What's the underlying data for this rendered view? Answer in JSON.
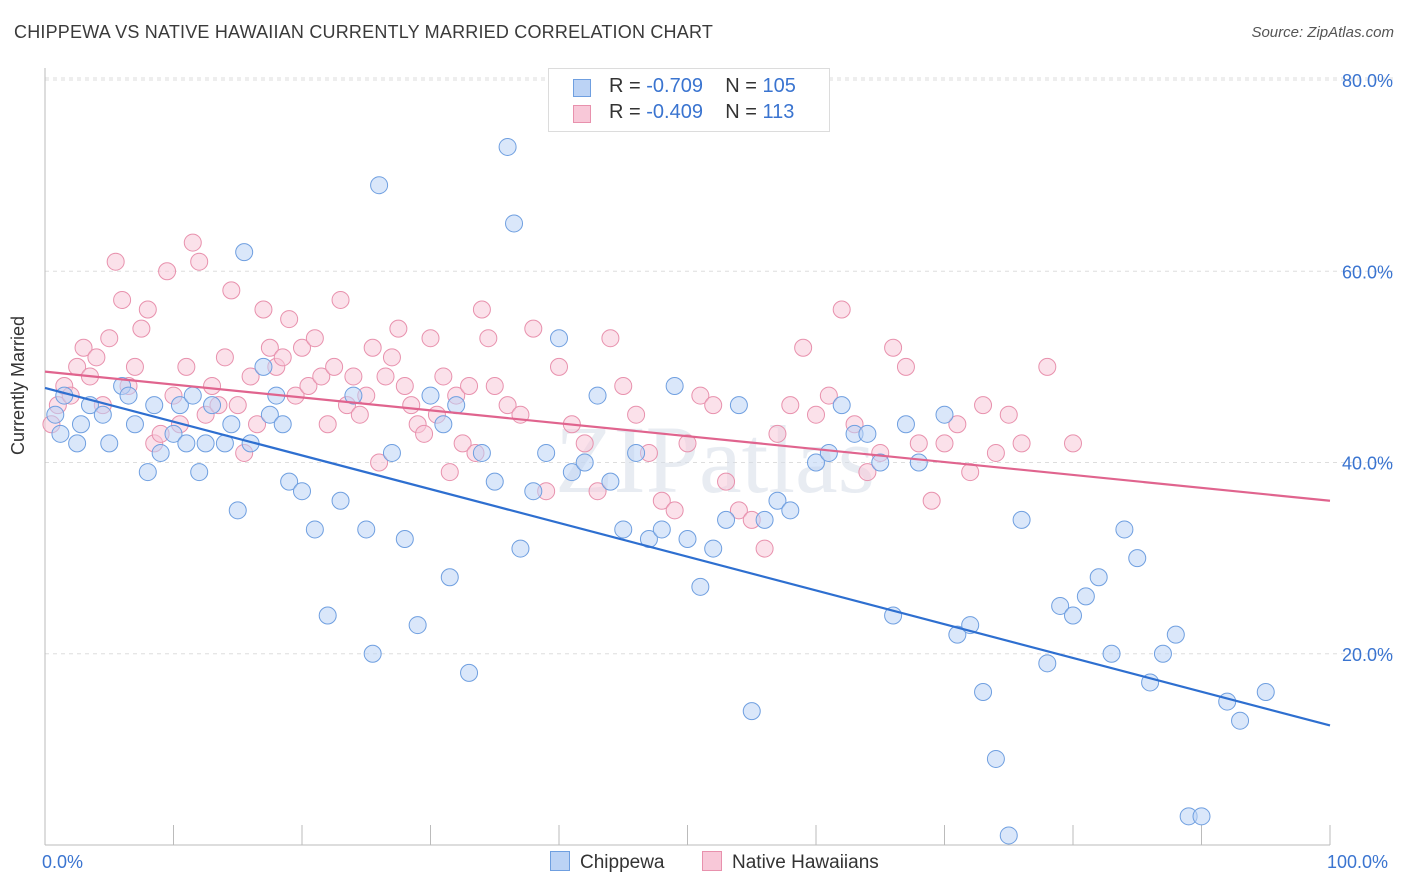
{
  "title": "CHIPPEWA VS NATIVE HAWAIIAN CURRENTLY MARRIED CORRELATION CHART",
  "source": "Source: ZipAtlas.com",
  "watermark": "ZIPatlas",
  "legend": {
    "rows": [
      {
        "r_label": "R =",
        "r_value": "-0.709",
        "n_label": "N =",
        "n_value": "105"
      },
      {
        "r_label": "R =",
        "r_value": "-0.409",
        "n_label": "N =",
        "n_value": "113"
      }
    ]
  },
  "bottom_legend": [
    "Chippewa",
    "Native Hawaiians"
  ],
  "chart_data": {
    "type": "scatter",
    "title": "CHIPPEWA VS NATIVE HAWAIIAN CURRENTLY MARRIED CORRELATION CHART",
    "xlabel": "",
    "ylabel": "Currently Married",
    "xlim": [
      0,
      100
    ],
    "ylim": [
      0,
      80
    ],
    "x_tick_labels": [
      "0.0%",
      "100.0%"
    ],
    "y_tick_values": [
      20,
      40,
      60,
      80
    ],
    "y_tick_labels": [
      "20.0%",
      "40.0%",
      "60.0%",
      "80.0%"
    ],
    "grid": "horizontal dashed",
    "legend_position": "top-center",
    "series": [
      {
        "name": "Chippewa",
        "color": "#6f9fe0",
        "fill": "#bcd3f5",
        "line_color": "#2e6fd0",
        "trend": {
          "x0": 0,
          "y0": 47.8,
          "x1": 100,
          "y1": 12.5
        },
        "points": [
          [
            0.8,
            45
          ],
          [
            1.2,
            43
          ],
          [
            1.5,
            47
          ],
          [
            2.5,
            42
          ],
          [
            2.8,
            44
          ],
          [
            3.5,
            46
          ],
          [
            4.5,
            45
          ],
          [
            5,
            42
          ],
          [
            6,
            48
          ],
          [
            6.5,
            47
          ],
          [
            7,
            44
          ],
          [
            8,
            39
          ],
          [
            8.5,
            46
          ],
          [
            9,
            41
          ],
          [
            10,
            43
          ],
          [
            10.5,
            46
          ],
          [
            11,
            42
          ],
          [
            11.5,
            47
          ],
          [
            12,
            39
          ],
          [
            12.5,
            42
          ],
          [
            13,
            46
          ],
          [
            14,
            42
          ],
          [
            14.5,
            44
          ],
          [
            15,
            35
          ],
          [
            15.5,
            62
          ],
          [
            16,
            42
          ],
          [
            17,
            50
          ],
          [
            17.5,
            45
          ],
          [
            18,
            47
          ],
          [
            18.5,
            44
          ],
          [
            19,
            38
          ],
          [
            20,
            37
          ],
          [
            21,
            33
          ],
          [
            22,
            24
          ],
          [
            23,
            36
          ],
          [
            24,
            47
          ],
          [
            25,
            33
          ],
          [
            25.5,
            20
          ],
          [
            26,
            69
          ],
          [
            27,
            41
          ],
          [
            28,
            32
          ],
          [
            29,
            23
          ],
          [
            30,
            47
          ],
          [
            31,
            44
          ],
          [
            31.5,
            28
          ],
          [
            32,
            46
          ],
          [
            33,
            18
          ],
          [
            34,
            41
          ],
          [
            35,
            38
          ],
          [
            36,
            73
          ],
          [
            36.5,
            65
          ],
          [
            37,
            31
          ],
          [
            38,
            37
          ],
          [
            39,
            41
          ],
          [
            40,
            53
          ],
          [
            41,
            39
          ],
          [
            42,
            40
          ],
          [
            43,
            47
          ],
          [
            44,
            38
          ],
          [
            45,
            33
          ],
          [
            46,
            41
          ],
          [
            47,
            32
          ],
          [
            48,
            33
          ],
          [
            49,
            48
          ],
          [
            50,
            32
          ],
          [
            51,
            27
          ],
          [
            52,
            31
          ],
          [
            53,
            34
          ],
          [
            54,
            46
          ],
          [
            55,
            14
          ],
          [
            56,
            34
          ],
          [
            57,
            36
          ],
          [
            58,
            35
          ],
          [
            60,
            40
          ],
          [
            61,
            41
          ],
          [
            62,
            46
          ],
          [
            63,
            43
          ],
          [
            64,
            43
          ],
          [
            65,
            40
          ],
          [
            66,
            24
          ],
          [
            67,
            44
          ],
          [
            68,
            40
          ],
          [
            70,
            45
          ],
          [
            71,
            22
          ],
          [
            72,
            23
          ],
          [
            73,
            16
          ],
          [
            74,
            9
          ],
          [
            75,
            1
          ],
          [
            76,
            34
          ],
          [
            78,
            19
          ],
          [
            79,
            25
          ],
          [
            80,
            24
          ],
          [
            81,
            26
          ],
          [
            82,
            28
          ],
          [
            83,
            20
          ],
          [
            84,
            33
          ],
          [
            85,
            30
          ],
          [
            86,
            17
          ],
          [
            87,
            20
          ],
          [
            88,
            22
          ],
          [
            89,
            3
          ],
          [
            90,
            3
          ],
          [
            92,
            15
          ],
          [
            93,
            13
          ],
          [
            95,
            16
          ]
        ]
      },
      {
        "name": "Native Hawaiians",
        "color": "#e891ad",
        "fill": "#f8c8d8",
        "line_color": "#e0648e",
        "trend": {
          "x0": 0,
          "y0": 49.5,
          "x1": 100,
          "y1": 36.0
        },
        "points": [
          [
            0.5,
            44
          ],
          [
            1,
            46
          ],
          [
            1.5,
            48
          ],
          [
            2,
            47
          ],
          [
            2.5,
            50
          ],
          [
            3,
            52
          ],
          [
            3.5,
            49
          ],
          [
            4,
            51
          ],
          [
            4.5,
            46
          ],
          [
            5,
            53
          ],
          [
            5.5,
            61
          ],
          [
            6,
            57
          ],
          [
            6.5,
            48
          ],
          [
            7,
            50
          ],
          [
            7.5,
            54
          ],
          [
            8,
            56
          ],
          [
            8.5,
            42
          ],
          [
            9,
            43
          ],
          [
            9.5,
            60
          ],
          [
            10,
            47
          ],
          [
            10.5,
            44
          ],
          [
            11,
            50
          ],
          [
            11.5,
            63
          ],
          [
            12,
            61
          ],
          [
            12.5,
            45
          ],
          [
            13,
            48
          ],
          [
            13.5,
            46
          ],
          [
            14,
            51
          ],
          [
            14.5,
            58
          ],
          [
            15,
            46
          ],
          [
            15.5,
            41
          ],
          [
            16,
            49
          ],
          [
            16.5,
            44
          ],
          [
            17,
            56
          ],
          [
            17.5,
            52
          ],
          [
            18,
            50
          ],
          [
            18.5,
            51
          ],
          [
            19,
            55
          ],
          [
            19.5,
            47
          ],
          [
            20,
            52
          ],
          [
            20.5,
            48
          ],
          [
            21,
            53
          ],
          [
            21.5,
            49
          ],
          [
            22,
            44
          ],
          [
            22.5,
            50
          ],
          [
            23,
            57
          ],
          [
            23.5,
            46
          ],
          [
            24,
            49
          ],
          [
            24.5,
            45
          ],
          [
            25,
            47
          ],
          [
            25.5,
            52
          ],
          [
            26,
            40
          ],
          [
            26.5,
            49
          ],
          [
            27,
            51
          ],
          [
            27.5,
            54
          ],
          [
            28,
            48
          ],
          [
            28.5,
            46
          ],
          [
            29,
            44
          ],
          [
            29.5,
            43
          ],
          [
            30,
            53
          ],
          [
            30.5,
            45
          ],
          [
            31,
            49
          ],
          [
            31.5,
            39
          ],
          [
            32,
            47
          ],
          [
            32.5,
            42
          ],
          [
            33,
            48
          ],
          [
            33.5,
            41
          ],
          [
            34,
            56
          ],
          [
            34.5,
            53
          ],
          [
            35,
            48
          ],
          [
            36,
            46
          ],
          [
            37,
            45
          ],
          [
            38,
            54
          ],
          [
            39,
            37
          ],
          [
            40,
            50
          ],
          [
            41,
            44
          ],
          [
            42,
            42
          ],
          [
            43,
            37
          ],
          [
            44,
            53
          ],
          [
            45,
            48
          ],
          [
            46,
            45
          ],
          [
            47,
            41
          ],
          [
            48,
            36
          ],
          [
            49,
            35
          ],
          [
            50,
            42
          ],
          [
            51,
            47
          ],
          [
            52,
            46
          ],
          [
            53,
            38
          ],
          [
            54,
            35
          ],
          [
            55,
            34
          ],
          [
            56,
            31
          ],
          [
            57,
            43
          ],
          [
            58,
            46
          ],
          [
            59,
            52
          ],
          [
            60,
            45
          ],
          [
            61,
            47
          ],
          [
            62,
            56
          ],
          [
            63,
            44
          ],
          [
            64,
            39
          ],
          [
            65,
            41
          ],
          [
            66,
            52
          ],
          [
            67,
            50
          ],
          [
            68,
            42
          ],
          [
            69,
            36
          ],
          [
            70,
            42
          ],
          [
            71,
            44
          ],
          [
            72,
            39
          ],
          [
            73,
            46
          ],
          [
            74,
            41
          ],
          [
            75,
            45
          ],
          [
            76,
            42
          ],
          [
            78,
            50
          ],
          [
            80,
            42
          ]
        ]
      }
    ]
  }
}
